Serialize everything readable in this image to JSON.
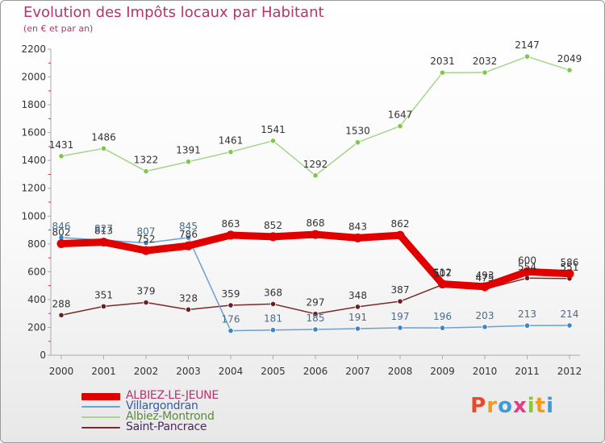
{
  "header": {
    "title": "Evolution des Impôts locaux par Habitant",
    "subtitle": "(en € et par an)"
  },
  "logo": {
    "text": "Proxiti",
    "letters": [
      {
        "ch": "P",
        "color": "#e8492a"
      },
      {
        "ch": "r",
        "color": "#f19a1f"
      },
      {
        "ch": "o",
        "color": "#3f9ad6"
      },
      {
        "ch": "x",
        "color": "#e33c86"
      },
      {
        "ch": "i",
        "color": "#8cc63f"
      },
      {
        "ch": "t",
        "color": "#f19a1f"
      },
      {
        "ch": "i",
        "color": "#3f9ad6"
      }
    ]
  },
  "chart_data": {
    "type": "line",
    "title": "Evolution des Impôts locaux par Habitant",
    "subtitle": "(en € et par an)",
    "x": [
      2000,
      2001,
      2002,
      2003,
      2004,
      2005,
      2006,
      2007,
      2008,
      2009,
      2010,
      2011,
      2012
    ],
    "ylim": [
      0,
      2200
    ],
    "yticks": [
      0,
      200,
      400,
      600,
      800,
      1000,
      1200,
      1400,
      1600,
      1800,
      2000,
      2200
    ],
    "grid": false,
    "legend_position": "bottom-left",
    "series": [
      {
        "name": "ALBIEZ-LE-JEUNE",
        "color": "#e00000",
        "marker_color": "#e00000",
        "label_color": "#333333",
        "values": [
          802,
          813,
          752,
          786,
          863,
          852,
          868,
          843,
          862,
          512,
          493,
          600,
          586
        ],
        "labels": [
          "802",
          "813",
          "752",
          "786",
          "863",
          "852",
          "868",
          "843",
          "862",
          "512",
          "493",
          "600",
          "586"
        ]
      },
      {
        "name": "Villargondran",
        "color": "#6aa0d2",
        "marker_color": "#3a86c8",
        "label_color": "#4a6a8a",
        "values": [
          846,
          827,
          807,
          845,
          176,
          181,
          185,
          191,
          197,
          196,
          203,
          213,
          214
        ],
        "labels": [
          "846",
          "827",
          "807",
          "845",
          "176",
          "181",
          "185",
          "191",
          "197",
          "196",
          "203",
          "213",
          "214"
        ]
      },
      {
        "name": "Albiez-Montrond",
        "color": "#a6d48a",
        "marker_color": "#7cc84c",
        "label_color": "#333333",
        "values": [
          1431,
          1486,
          1322,
          1391,
          1461,
          1541,
          1292,
          1530,
          1647,
          2031,
          2032,
          2147,
          2049
        ],
        "labels": [
          "1431",
          "1486",
          "1322",
          "1391",
          "1461",
          "1541",
          "1292",
          "1530",
          "1647",
          "2031",
          "2032",
          "2147",
          "2049"
        ]
      },
      {
        "name": "Saint-Pancrace",
        "color": "#7a2a2a",
        "marker_color": "#6b1e1e",
        "label_color": "#333333",
        "values": [
          288,
          351,
          379,
          328,
          359,
          368,
          297,
          348,
          387,
          507,
          475,
          554,
          551
        ],
        "labels": [
          "288",
          "351",
          "379",
          "328",
          "359",
          "368",
          "297",
          "348",
          "387",
          "507",
          "475",
          "554",
          "551"
        ]
      }
    ]
  }
}
